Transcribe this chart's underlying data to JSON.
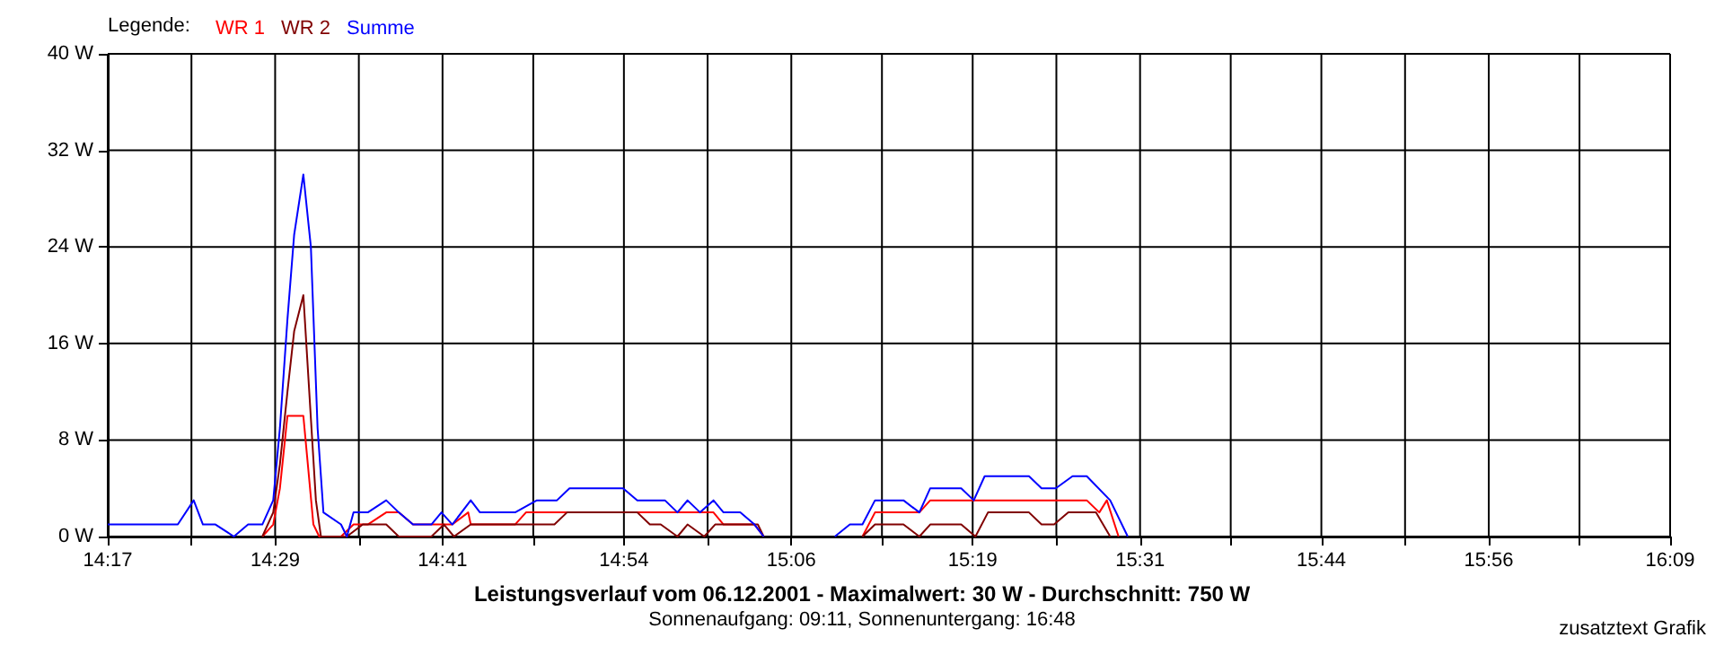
{
  "chart_data": {
    "type": "line",
    "title": "Leistungsverlauf vom 06.12.2001 - Maximalwert: 30 W - Durchschnitt: 750 W",
    "subtitle": "Sonnenaufgang: 09:11, Sonnenuntergang: 16:48",
    "annotations": [
      "zusatztext Grafik"
    ],
    "legend_title": "Legende:",
    "legend": "top left",
    "grid": true,
    "marker": "none",
    "line_style": "solid",
    "xlim": [
      14.2833,
      16.15
    ],
    "ylim": [
      0,
      40
    ],
    "xticks": [
      {
        "value": 14.2833,
        "label": "14:17"
      },
      {
        "value": 14.3833,
        "label": null
      },
      {
        "value": 14.4833,
        "label": "14:29"
      },
      {
        "value": 14.5833,
        "label": null
      },
      {
        "value": 14.6833,
        "label": "14:41"
      },
      {
        "value": 14.7917,
        "label": null
      },
      {
        "value": 14.9,
        "label": "14:54"
      },
      {
        "value": 15.0,
        "label": null
      },
      {
        "value": 15.1,
        "label": "15:06"
      },
      {
        "value": 15.2083,
        "label": null
      },
      {
        "value": 15.3167,
        "label": "15:19"
      },
      {
        "value": 15.4167,
        "label": null
      },
      {
        "value": 15.5167,
        "label": "15:31"
      },
      {
        "value": 15.625,
        "label": null
      },
      {
        "value": 15.7333,
        "label": "15:44"
      },
      {
        "value": 15.8333,
        "label": null
      },
      {
        "value": 15.9333,
        "label": "15:56"
      },
      {
        "value": 16.0417,
        "label": null
      },
      {
        "value": 16.15,
        "label": "16:09"
      }
    ],
    "yticks": [
      {
        "value": 0,
        "label": "0 W"
      },
      {
        "value": 8,
        "label": "8 W"
      },
      {
        "value": 16,
        "label": "16 W"
      },
      {
        "value": 24,
        "label": "24 W"
      },
      {
        "value": 32,
        "label": "32 W"
      },
      {
        "value": 40,
        "label": "40 W"
      }
    ],
    "series": [
      {
        "name": "WR 1",
        "color": "#ff0000",
        "x": [
          14.468,
          14.481,
          14.489,
          14.498,
          14.506,
          14.517,
          14.529,
          14.536,
          14.562,
          14.577,
          14.594,
          14.616,
          14.631,
          14.648,
          14.67,
          14.695,
          14.714,
          14.717,
          14.77,
          14.783,
          14.907,
          15.007,
          15.019,
          15.056,
          15.067,
          15.1,
          15.185,
          15.2,
          15.253,
          15.266,
          15.453,
          15.468,
          15.477,
          15.491
        ],
        "values": [
          0,
          1,
          4,
          10,
          10,
          10,
          1,
          0,
          0,
          1,
          1,
          2,
          2,
          1,
          1,
          1,
          2,
          1,
          1,
          2,
          2,
          2,
          1,
          1,
          0,
          null,
          0,
          2,
          2,
          3,
          3,
          2,
          3,
          0
        ]
      },
      {
        "name": "WR 2",
        "color": "#800000",
        "x": [
          14.468,
          14.481,
          14.489,
          14.498,
          14.506,
          14.517,
          14.532,
          14.538,
          14.562,
          14.569,
          14.588,
          14.616,
          14.631,
          14.67,
          14.685,
          14.697,
          14.717,
          14.817,
          14.832,
          14.916,
          14.931,
          14.944,
          14.964,
          14.976,
          14.996,
          15.009,
          15.06,
          15.067,
          15.1,
          15.185,
          15.2,
          15.234,
          15.253,
          15.266,
          15.303,
          15.32,
          15.335,
          15.384,
          15.399,
          15.414,
          15.431,
          15.464,
          15.481
        ],
        "values": [
          0,
          2,
          6,
          12,
          17,
          20,
          3,
          0,
          0,
          0,
          1,
          1,
          0,
          0,
          1,
          0,
          1,
          1,
          2,
          2,
          1,
          1,
          0,
          1,
          0,
          1,
          1,
          0,
          null,
          0,
          1,
          1,
          0,
          1,
          1,
          0,
          2,
          2,
          1,
          1,
          2,
          2,
          0
        ]
      },
      {
        "name": "Summe",
        "color": "#0000ff",
        "x": [
          14.2833,
          14.367,
          14.386,
          14.397,
          14.412,
          14.434,
          14.451,
          14.468,
          14.481,
          14.489,
          14.498,
          14.506,
          14.517,
          14.526,
          14.534,
          14.541,
          14.562,
          14.569,
          14.577,
          14.594,
          14.616,
          14.631,
          14.648,
          14.67,
          14.682,
          14.695,
          14.717,
          14.728,
          14.77,
          14.796,
          14.82,
          14.835,
          14.899,
          14.916,
          14.949,
          14.964,
          14.976,
          14.991,
          15.007,
          15.019,
          15.039,
          15.056,
          15.067,
          15.1,
          15.152,
          15.17,
          15.185,
          15.2,
          15.234,
          15.253,
          15.266,
          15.303,
          15.318,
          15.331,
          15.384,
          15.399,
          15.416,
          15.436,
          15.453,
          15.481,
          15.502
        ],
        "values": [
          1,
          1,
          3,
          1,
          1,
          0,
          1,
          1,
          3,
          9,
          18,
          25,
          30,
          24,
          9,
          2,
          1,
          0,
          2,
          2,
          3,
          2,
          1,
          1,
          2,
          1,
          3,
          2,
          2,
          3,
          3,
          4,
          4,
          3,
          3,
          2,
          3,
          2,
          3,
          2,
          2,
          1,
          0,
          null,
          0,
          1,
          1,
          3,
          3,
          2,
          4,
          4,
          3,
          5,
          5,
          4,
          4,
          5,
          5,
          3,
          0
        ]
      }
    ]
  }
}
